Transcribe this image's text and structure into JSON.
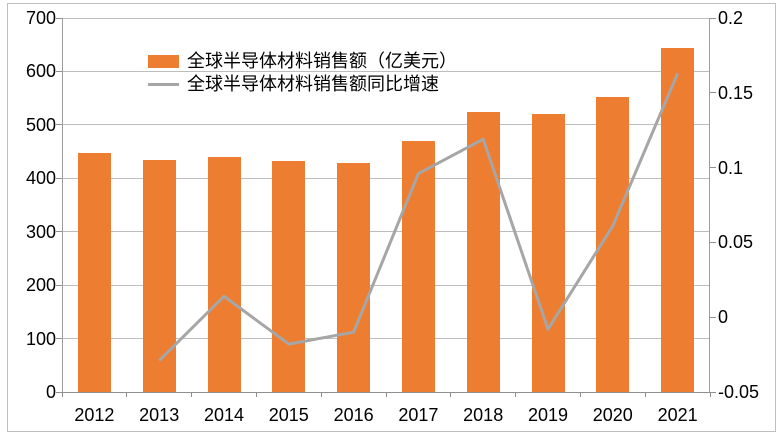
{
  "chart_data": {
    "type": "combo_bar_line",
    "title": "",
    "categories": [
      "2012",
      "2013",
      "2014",
      "2015",
      "2016",
      "2017",
      "2018",
      "2019",
      "2020",
      "2021"
    ],
    "series": [
      {
        "name": "全球半导体材料销售额（亿美元）",
        "type": "bar",
        "axis": "left",
        "color": "#ED7D31",
        "values": [
          447,
          434,
          440,
          432,
          428,
          469,
          525,
          521,
          553,
          643
        ]
      },
      {
        "name": "全球半导体材料销售额同比增速",
        "type": "line",
        "axis": "right",
        "color": "#A6A6A6",
        "values": [
          null,
          -0.029,
          0.014,
          -0.018,
          -0.01,
          0.096,
          0.119,
          -0.008,
          0.061,
          0.163
        ]
      }
    ],
    "left_axis": {
      "min": 0,
      "max": 700,
      "step": 100,
      "tick_labels": [
        "0",
        "100",
        "200",
        "300",
        "400",
        "500",
        "600",
        "700"
      ]
    },
    "right_axis": {
      "min": -0.05,
      "max": 0.2,
      "step": 0.05,
      "tick_labels": [
        "-0.05",
        "0",
        "0.05",
        "0.1",
        "0.15",
        "0.2"
      ]
    },
    "grid": true,
    "legend_position": "top-left-inside"
  }
}
